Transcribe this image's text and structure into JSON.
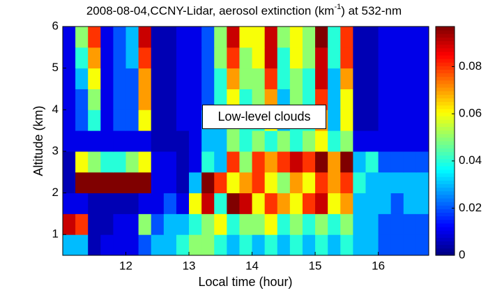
{
  "chart_data": {
    "type": "heatmap",
    "title": [
      "2008-08-04,CCNY-Lidar, aerosol extinction (km",
      "-1",
      ") at 532-nm"
    ],
    "xlabel": "Local time (hour)",
    "ylabel": "Altitude (km)",
    "annotation": "Low-level clouds",
    "colormap": "jet",
    "xlim": [
      11,
      16.8
    ],
    "ylim": [
      0.5,
      6
    ],
    "xticks": [
      12,
      13,
      14,
      15,
      16
    ],
    "yticks": [
      1,
      2,
      3,
      4,
      5,
      6
    ],
    "clim": [
      0,
      0.097
    ],
    "cticks": [
      0,
      0.02,
      0.04,
      0.06,
      0.08
    ],
    "xbins": [
      11.0,
      11.2,
      11.4,
      11.6,
      11.8,
      12.0,
      12.2,
      12.4,
      12.6,
      12.8,
      13.0,
      13.2,
      13.4,
      13.6,
      13.8,
      14.0,
      14.2,
      14.4,
      14.6,
      14.8,
      15.0,
      15.2,
      15.4,
      15.6,
      15.8,
      16.0,
      16.2,
      16.4,
      16.6,
      16.8
    ],
    "ybins": [
      0.5,
      1.0,
      1.5,
      2.0,
      2.5,
      3.0,
      3.5,
      4.0,
      4.5,
      5.0,
      5.5,
      6.0
    ],
    "z": [
      [
        0.03,
        0.03,
        0.005,
        0.01,
        0.01,
        0.01,
        0.02,
        0.03,
        0.03,
        0.04,
        0.05,
        0.05,
        0.04,
        0.03,
        0.04,
        0.03,
        0.04,
        0.03,
        0.04,
        0.03,
        0.04,
        0.03,
        0.04,
        0.03,
        0.03,
        0.02,
        0.02,
        0.02,
        0.02
      ],
      [
        0.09,
        0.08,
        0.005,
        0.005,
        0.01,
        0.01,
        0.05,
        0.02,
        0.03,
        0.03,
        0.04,
        0.05,
        0.06,
        0.04,
        0.05,
        0.05,
        0.06,
        0.04,
        0.05,
        0.04,
        0.05,
        0.04,
        0.05,
        0.03,
        0.03,
        0.02,
        0.02,
        0.02,
        0.02
      ],
      [
        0.01,
        0.01,
        0.005,
        0.005,
        0.005,
        0.005,
        0.01,
        0.01,
        0.02,
        0.01,
        0.06,
        0.09,
        0.04,
        0.1,
        0.09,
        0.06,
        0.08,
        0.07,
        0.06,
        0.08,
        0.09,
        0.06,
        0.07,
        0.03,
        0.03,
        0.03,
        0.02,
        0.03,
        0.03
      ],
      [
        0.005,
        0.1,
        0.1,
        0.1,
        0.1,
        0.1,
        0.1,
        0.01,
        0.01,
        0.005,
        0.03,
        0.1,
        0.08,
        0.06,
        0.07,
        0.08,
        0.06,
        0.05,
        0.07,
        0.06,
        0.08,
        0.07,
        0.08,
        0.04,
        0.03,
        0.03,
        0.03,
        0.03,
        0.03
      ],
      [
        0.005,
        0.06,
        0.05,
        0.04,
        0.04,
        0.05,
        0.06,
        0.01,
        0.01,
        0.005,
        0.01,
        0.04,
        0.03,
        0.08,
        0.05,
        0.08,
        0.07,
        0.08,
        0.09,
        0.08,
        0.1,
        0.07,
        0.1,
        0.03,
        0.04,
        0.02,
        0.02,
        0.02,
        0.02
      ],
      [
        0.01,
        0.01,
        0.01,
        0.01,
        0.01,
        0.01,
        0.01,
        0.005,
        0.005,
        0.005,
        0.01,
        0.03,
        0.03,
        0.05,
        0.04,
        0.05,
        0.04,
        0.05,
        0.04,
        0.05,
        0.06,
        0.04,
        0.05,
        0.01,
        0.01,
        0.01,
        0.01,
        0.01,
        0.01
      ],
      [
        0.01,
        0.02,
        0.04,
        0.01,
        0.02,
        0.02,
        0.06,
        0.005,
        0.005,
        0.01,
        0.01,
        0.03,
        0.03,
        0.05,
        0.04,
        0.04,
        0.06,
        0.03,
        0.04,
        0.04,
        0.07,
        0.03,
        0.06,
        0.005,
        0.005,
        0.01,
        0.01,
        0.01,
        0.01
      ],
      [
        0.01,
        0.02,
        0.05,
        0.01,
        0.02,
        0.02,
        0.07,
        0.005,
        0.005,
        0.01,
        0.01,
        0.02,
        0.04,
        0.06,
        0.04,
        0.05,
        0.07,
        0.03,
        0.05,
        0.04,
        0.08,
        0.03,
        0.06,
        0.005,
        0.005,
        0.01,
        0.01,
        0.01,
        0.01
      ],
      [
        0.01,
        0.03,
        0.06,
        0.01,
        0.02,
        0.02,
        0.07,
        0.005,
        0.005,
        0.01,
        0.01,
        0.02,
        0.04,
        0.07,
        0.05,
        0.05,
        0.08,
        0.04,
        0.05,
        0.04,
        0.09,
        0.03,
        0.07,
        0.005,
        0.005,
        0.01,
        0.01,
        0.01,
        0.01
      ],
      [
        0.01,
        0.04,
        0.07,
        0.01,
        0.02,
        0.03,
        0.08,
        0.005,
        0.005,
        0.01,
        0.01,
        0.02,
        0.05,
        0.08,
        0.05,
        0.06,
        0.09,
        0.04,
        0.06,
        0.05,
        0.09,
        0.04,
        0.08,
        0.005,
        0.005,
        0.01,
        0.01,
        0.01,
        0.01
      ],
      [
        0.01,
        0.05,
        0.08,
        0.01,
        0.02,
        0.03,
        0.09,
        0.005,
        0.005,
        0.01,
        0.01,
        0.02,
        0.05,
        0.09,
        0.06,
        0.06,
        0.09,
        0.05,
        0.06,
        0.05,
        0.1,
        0.04,
        0.08,
        0.005,
        0.005,
        0.01,
        0.01,
        0.01,
        0.01
      ]
    ]
  }
}
